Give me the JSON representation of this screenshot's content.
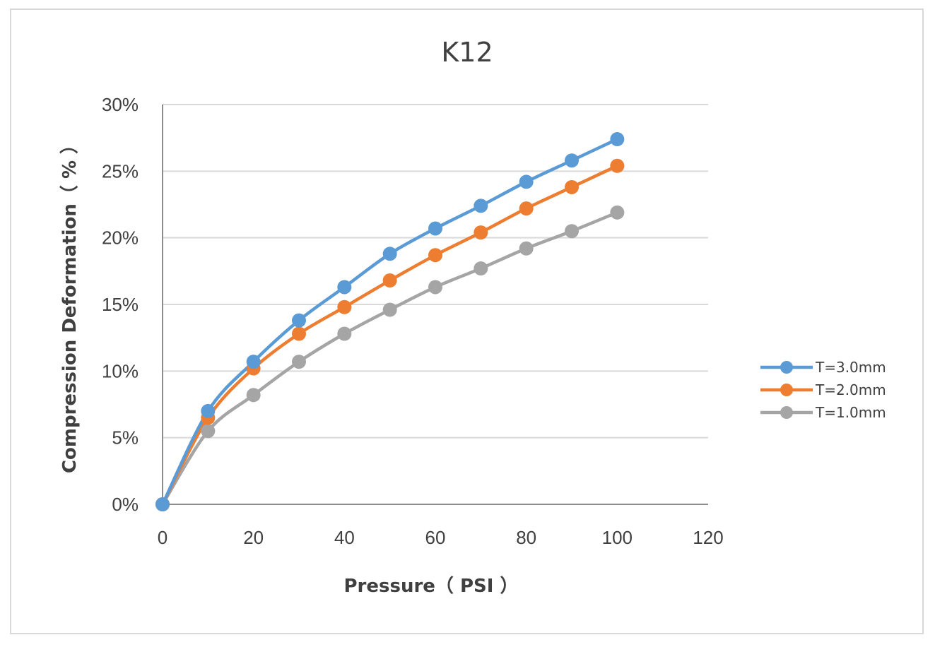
{
  "chart_data": {
    "type": "line",
    "title": "K12",
    "xlabel": "Pressure（ PSI ）",
    "ylabel": "Compression Deformation（ % ）",
    "xlim": [
      0,
      120
    ],
    "ylim": [
      0,
      0.3
    ],
    "x_ticks": [
      "0",
      "20",
      "40",
      "60",
      "80",
      "100",
      "120"
    ],
    "x_tick_values": [
      0,
      20,
      40,
      60,
      80,
      100,
      120
    ],
    "y_ticks": [
      "0%",
      "5%",
      "10%",
      "15%",
      "20%",
      "25%",
      "30%"
    ],
    "y_tick_values": [
      0,
      0.05,
      0.1,
      0.15,
      0.2,
      0.25,
      0.3
    ],
    "grid": "horizontal",
    "legend_position": "right",
    "x": [
      0,
      10,
      20,
      30,
      40,
      50,
      60,
      70,
      80,
      90,
      100
    ],
    "series": [
      {
        "name": "T=3.0mm",
        "color": "#5b9bd5",
        "values": [
          0,
          0.07,
          0.107,
          0.138,
          0.163,
          0.188,
          0.207,
          0.224,
          0.242,
          0.258,
          0.274
        ]
      },
      {
        "name": "T=2.0mm",
        "color": "#ed7d31",
        "values": [
          0,
          0.065,
          0.102,
          0.128,
          0.148,
          0.168,
          0.187,
          0.204,
          0.222,
          0.238,
          0.254
        ]
      },
      {
        "name": "T=1.0mm",
        "color": "#a5a5a5",
        "values": [
          0,
          0.055,
          0.082,
          0.107,
          0.128,
          0.146,
          0.163,
          0.177,
          0.192,
          0.205,
          0.219
        ]
      }
    ]
  }
}
